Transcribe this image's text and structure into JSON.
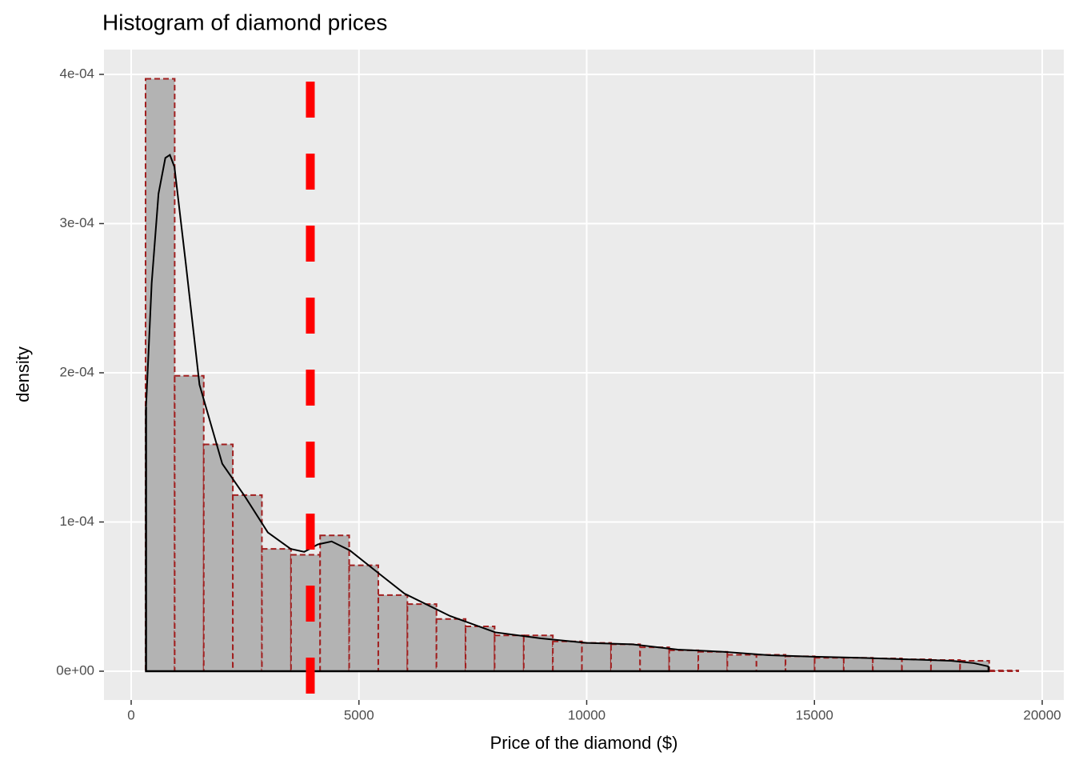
{
  "chart_data": {
    "type": "histogram",
    "title": "Histogram of diamond prices",
    "x_label": "Price of the diamond ($)",
    "y_label": "density",
    "bins": [
      316,
      955,
      1593,
      2232,
      2870,
      3509,
      4148,
      4786,
      5425,
      6064,
      6702,
      7341,
      7979,
      8618,
      9257,
      9895,
      10534,
      11172,
      11811,
      12450,
      13088,
      13727,
      14365,
      15004,
      15643,
      16281,
      16920,
      17558,
      18197,
      18836,
      19474
    ],
    "values": [
      0.000397,
      0.000198,
      0.000152,
      0.000118,
      8.2e-05,
      7.8e-05,
      9.1e-05,
      7.1e-05,
      5.1e-05,
      4.5e-05,
      3.5e-05,
      3e-05,
      2.4e-05,
      2.4e-05,
      2e-05,
      1.9e-05,
      1.8e-05,
      1.6e-05,
      1.4e-05,
      1.3e-05,
      1.1e-05,
      1.1e-05,
      1e-05,
      9e-06,
      9e-06,
      8.6e-06,
      8e-06,
      7.5e-06,
      7e-06,
      5e-07
    ],
    "color": "#b3b3b3",
    "edge_color": "#a11f1f",
    "density": {
      "color": "#000000",
      "x": [
        326,
        450,
        600,
        750,
        850,
        950,
        1200,
        1500,
        2000,
        2500,
        3000,
        3500,
        3800,
        4100,
        4400,
        4800,
        5500,
        6000,
        7000,
        8000,
        9000,
        10000,
        11000,
        12000,
        13000,
        14000,
        15000,
        16000,
        17000,
        18000,
        18500,
        18823
      ],
      "y": [
        0.000177,
        0.00026,
        0.00032,
        0.000344,
        0.000346,
        0.000338,
        0.000273,
        0.000192,
        0.000139,
        0.000117,
        9.3e-05,
        8.2e-05,
        8e-05,
        8.5e-05,
        8.7e-05,
        8.1e-05,
        6.4e-05,
        5.2e-05,
        3.7e-05,
        2.6e-05,
        2.2e-05,
        1.9e-05,
        1.8e-05,
        1.45e-05,
        1.3e-05,
        1.07e-05,
        9.7e-06,
        9e-06,
        8e-06,
        7e-06,
        5.4e-06,
        3.2e-06
      ]
    },
    "mean_line": {
      "x": 3932.8,
      "color": "#ff0000"
    },
    "xlim": [
      -597,
      20474
    ],
    "ylim": [
      -1.93e-05,
      0.0004166
    ],
    "xticks": [
      0,
      5000,
      10000,
      15000,
      20000
    ],
    "yticks": [
      {
        "value": 0,
        "label": "0e+00"
      },
      {
        "value": 0.0001,
        "label": "1e-04"
      },
      {
        "value": 0.0002,
        "label": "2e-04"
      },
      {
        "value": 0.0003,
        "label": "3e-04"
      },
      {
        "value": 0.0004,
        "label": "4e-04"
      }
    ],
    "grid": true
  }
}
